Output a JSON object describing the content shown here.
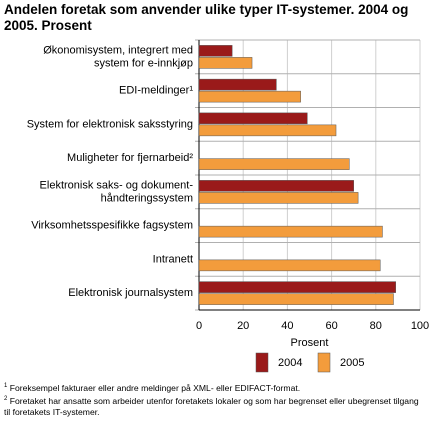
{
  "chart_data": {
    "type": "bar",
    "orientation": "horizontal",
    "title": "Andelen foretak som anvender ulike typer IT-systemer. 2004 og 2005. Prosent",
    "categories": [
      [
        "Økonomisystem, integrert med",
        "system for e-innkjøp"
      ],
      "EDI-meldinger¹",
      "System for elektronisk saksstyring",
      "Muligheter for fjernarbeid²",
      [
        "Elektronisk saks- og dokument-",
        "håndteringssystem"
      ],
      "Virksomhetsspesifikke fagsystem",
      "Intranett",
      "Elektronisk journalsystem"
    ],
    "series": [
      {
        "name": "2004",
        "color": "#9a1a1a",
        "values": [
          15,
          35,
          49,
          null,
          70,
          null,
          null,
          89
        ]
      },
      {
        "name": "2005",
        "color": "#f39c3c",
        "values": [
          24,
          46,
          62,
          68,
          72,
          83,
          82,
          88
        ]
      }
    ],
    "xlabel": "Prosent",
    "xlim": [
      0,
      100
    ],
    "xticks": [
      0,
      20,
      40,
      60,
      80,
      100
    ],
    "grid": true,
    "footnotes": [
      {
        "marker": "1",
        "text": "Foreksempel fakturaer eller andre meldinger på XML- eller EDIFACT-format."
      },
      {
        "marker": "2",
        "text": "Foretaket har ansatte som arbeider utenfor foretakets lokaler og som har begrenset eller ubegrenset tilgang til foretakets IT-systemer."
      }
    ]
  }
}
